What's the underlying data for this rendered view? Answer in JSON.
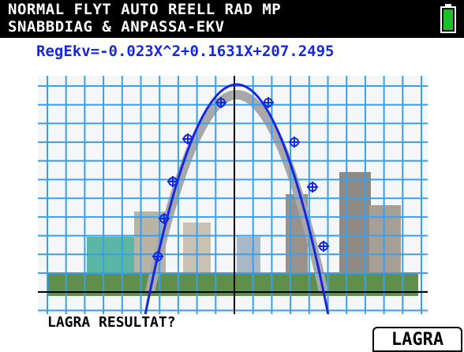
{
  "status": {
    "line1": "NORMAL FLYT AUTO REELL RAD MP",
    "line2": "SNABBDIAG & ANPASSA-EKV"
  },
  "equation": "RegEkv=-0.023X^2+0.1631X+207.2495",
  "prompt": "LAGRA RESULTAT?",
  "button": "LAGRA"
}
